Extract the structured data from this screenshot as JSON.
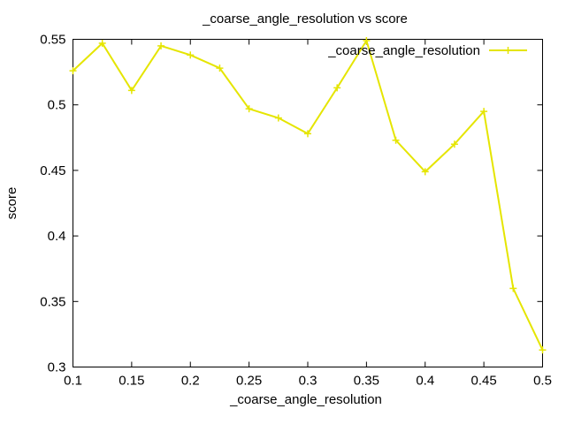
{
  "chart_data": {
    "type": "line",
    "title": "_coarse_angle_resolution vs score",
    "xlabel": "_coarse_angle_resolution",
    "ylabel": "score",
    "xlim": [
      0.1,
      0.5
    ],
    "ylim": [
      0.3,
      0.55
    ],
    "xticks": [
      0.1,
      0.15,
      0.2,
      0.25,
      0.3,
      0.35,
      0.4,
      0.45,
      0.5
    ],
    "xtick_labels": [
      "0.1",
      "0.15",
      "0.2",
      "0.25",
      "0.3",
      "0.35",
      "0.4",
      "0.45",
      "0.5"
    ],
    "yticks": [
      0.3,
      0.35,
      0.4,
      0.45,
      0.5,
      0.55
    ],
    "ytick_labels": [
      "0.3",
      "0.35",
      "0.4",
      "0.45",
      "0.5",
      "0.55"
    ],
    "grid": false,
    "legend_position": "top-right",
    "series": [
      {
        "name": "_coarse_angle_resolution",
        "color": "#e5e500",
        "marker": "plus",
        "x": [
          0.1,
          0.125,
          0.15,
          0.175,
          0.2,
          0.225,
          0.25,
          0.275,
          0.3,
          0.325,
          0.35,
          0.375,
          0.4,
          0.425,
          0.45,
          0.475,
          0.5
        ],
        "values": [
          0.526,
          0.547,
          0.511,
          0.545,
          0.538,
          0.528,
          0.497,
          0.49,
          0.478,
          0.513,
          0.549,
          0.473,
          0.449,
          0.47,
          0.495,
          0.36,
          0.313
        ]
      }
    ]
  }
}
